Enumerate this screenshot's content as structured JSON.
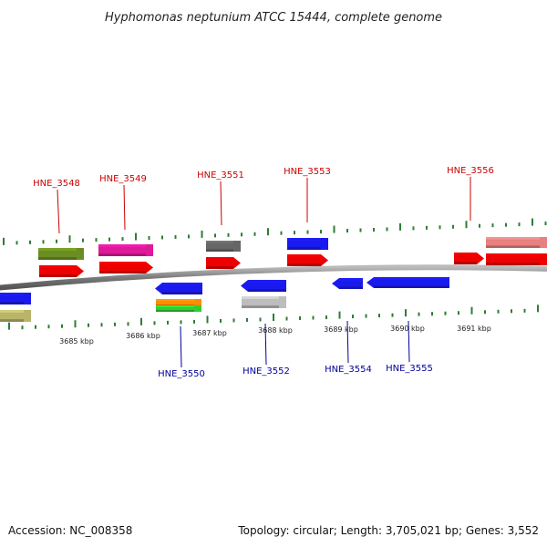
{
  "title": "Hyphomonas neptunium ATCC 15444, complete genome",
  "footer": {
    "accession": "Accession: NC_008358",
    "topology": "Topology: circular; Length: 3,705,021 bp; Genes: 3,552"
  },
  "colors": {
    "forward_label": "#cc0000",
    "reverse_label": "#000099",
    "backbone": "#8a8a8a",
    "tick": "#2e7d32"
  },
  "scale_labels": [
    "3685 kbp",
    "3686 kbp",
    "3687 kbp",
    "3688 kbp",
    "3689 kbp",
    "3690 kbp",
    "3691 kbp"
  ],
  "top_labels": [
    "HNE_3548",
    "HNE_3549",
    "HNE_3551",
    "HNE_3553",
    "HNE_3556"
  ],
  "bottom_labels": [
    "HNE_3550",
    "HNE_3552",
    "HNE_3554",
    "HNE_3555"
  ],
  "feature_colors": {
    "red": "#ee0000",
    "blue": "#1a1aee",
    "olive": "#6b8e23",
    "magenta": "#e0199a",
    "gray": "#666666",
    "silver": "#bdbdbd",
    "orange": "#ff8c00",
    "green": "#33cc33",
    "khaki": "#b8b46a",
    "salmon": "#e88080"
  }
}
